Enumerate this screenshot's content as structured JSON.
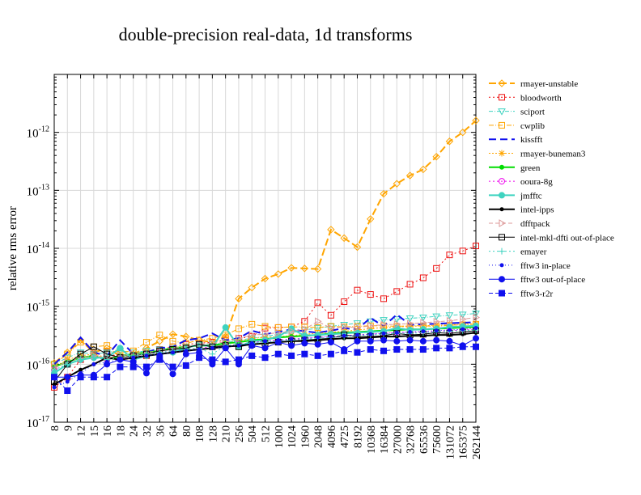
{
  "chart_data": {
    "type": "line",
    "title": "double-precision real-data, 1d transforms",
    "xlabel": "",
    "ylabel": "relative rms error",
    "yscale": "log",
    "ylim": [
      1e-17,
      1e-11
    ],
    "y_tick_labels": [
      "10",
      "10",
      "10",
      "10",
      "10",
      "10"
    ],
    "y_tick_exponents": [
      "-17",
      "-16",
      "-15",
      "-14",
      "-13",
      "-12"
    ],
    "grid": true,
    "legend_position": "right",
    "categories": [
      "8",
      "9",
      "12",
      "15",
      "16",
      "18",
      "24",
      "32",
      "36",
      "64",
      "80",
      "108",
      "128",
      "210",
      "256",
      "504",
      "512",
      "1000",
      "1024",
      "1960",
      "2048",
      "4096",
      "4725",
      "8192",
      "10368",
      "16384",
      "27000",
      "32768",
      "65536",
      "75600",
      "131072",
      "165375",
      "262144"
    ],
    "series": [
      {
        "name": "rmayer-unstable",
        "color": "#ffa500",
        "dash": "9,4",
        "width": 2,
        "marker": "diamond",
        "fill": "none",
        "values": [
          1.05e-16,
          1.6e-16,
          2.6e-16,
          1.6e-16,
          1.9e-16,
          1.4e-16,
          1.5e-16,
          1.9e-16,
          2.5e-16,
          3.3e-16,
          3e-16,
          2.6e-16,
          2.4e-16,
          3e-16,
          1.35e-15,
          2.1e-15,
          3e-15,
          3.6e-15,
          4.6e-15,
          4.5e-15,
          4.4e-15,
          2.1e-14,
          1.5e-14,
          1.05e-14,
          3.2e-14,
          8.7e-14,
          1.3e-13,
          1.8e-13,
          2.3e-13,
          3.8e-13,
          7e-13,
          1e-12,
          1.6e-12
        ]
      },
      {
        "name": "bloodworth",
        "color": "#ee1111",
        "dash": "2,3",
        "width": 1,
        "marker": "square",
        "fill": "none",
        "values": [
          4e-17,
          6e-17,
          1.2e-16,
          1.5e-16,
          1.6e-16,
          1.3e-16,
          1.3e-16,
          1.4e-16,
          1.8e-16,
          2e-16,
          2.2e-16,
          2.3e-16,
          2.4e-16,
          2.6e-16,
          2.8e-16,
          3e-16,
          4.2e-16,
          4.3e-16,
          4.4e-16,
          5.5e-16,
          1.15e-15,
          7e-16,
          1.2e-15,
          1.9e-15,
          1.6e-15,
          1.35e-15,
          1.8e-15,
          2.4e-15,
          3.1e-15,
          4.5e-15,
          7.7e-15,
          9e-15,
          1.1e-14
        ]
      },
      {
        "name": "sciport",
        "color": "#3fd3c0",
        "dash": "5,2,1,2",
        "width": 1,
        "marker": "triangle-down",
        "fill": "none",
        "values": [
          1e-16,
          1.3e-16,
          1.6e-16,
          1.5e-16,
          1.6e-16,
          1.7e-16,
          1.6e-16,
          1.7e-16,
          1.8e-16,
          1.9e-16,
          2e-16,
          2.1e-16,
          2.2e-16,
          2.4e-16,
          2.6e-16,
          2.8e-16,
          3e-16,
          3.3e-16,
          3.5e-16,
          3.9e-16,
          4.2e-16,
          4.5e-16,
          4.8e-16,
          5.1e-16,
          5.5e-16,
          5.8e-16,
          6e-16,
          6.2e-16,
          6.4e-16,
          6.7e-16,
          7e-16,
          7.2e-16,
          7.5e-16
        ]
      },
      {
        "name": "cwplib",
        "color": "#ffa500",
        "dash": "6,2,1,2",
        "width": 1,
        "marker": "square",
        "fill": "none",
        "values": [
          1e-16,
          1.5e-16,
          2.4e-16,
          2e-16,
          2.1e-16,
          1.6e-16,
          1.7e-16,
          2.4e-16,
          3.2e-16,
          2.5e-16,
          2.3e-16,
          2.6e-16,
          2.8e-16,
          3.2e-16,
          4.1e-16,
          4.9e-16,
          4.5e-16,
          4.3e-16,
          4.4e-16,
          4.4e-16,
          4.3e-16,
          4.5e-16,
          4.4e-16,
          4.5e-16,
          4.6e-16,
          4.6e-16,
          4.5e-16,
          4.6e-16,
          4.6e-16,
          4.5e-16,
          4.7e-16,
          4.8e-16,
          4.9e-16
        ]
      },
      {
        "name": "kissfft",
        "color": "#1010ee",
        "dash": "9,5",
        "width": 2,
        "marker": "none",
        "fill": "none",
        "values": [
          1e-16,
          1.6e-16,
          2.9e-16,
          1.6e-16,
          1.4e-16,
          2.6e-16,
          1.5e-16,
          1.6e-16,
          1.9e-16,
          2e-16,
          2.6e-16,
          2.8e-16,
          3.4e-16,
          2.6e-16,
          2.8e-16,
          3.8e-16,
          3.3e-16,
          3.6e-16,
          4e-16,
          3.7e-16,
          3.5e-16,
          3.8e-16,
          4.2e-16,
          4e-16,
          6.3e-16,
          4.5e-16,
          7.2e-16,
          4.8e-16,
          4.9e-16,
          5e-16,
          5.1e-16,
          5.2e-16,
          5.3e-16
        ]
      },
      {
        "name": "rmayer-buneman3",
        "color": "#ffa500",
        "dash": "2,2",
        "width": 1,
        "marker": "star",
        "fill": "none",
        "values": [
          9e-17,
          1.2e-16,
          1.4e-16,
          1.5e-16,
          1.3e-16,
          1.4e-16,
          1.5e-16,
          1.6e-16,
          1.7e-16,
          1.8e-16,
          2e-16,
          2.1e-16,
          2.1e-16,
          2.3e-16,
          2.5e-16,
          2.8e-16,
          2.9e-16,
          3e-16,
          3.1e-16,
          3.3e-16,
          3.4e-16,
          3.6e-16,
          3.7e-16,
          3.9e-16,
          4.1e-16,
          4.3e-16,
          4.4e-16,
          4.5e-16,
          4.6e-16,
          4.7e-16,
          4.8e-16,
          4.9e-16,
          5e-16
        ]
      },
      {
        "name": "green",
        "color": "#00dd00",
        "dash": "",
        "width": 2,
        "marker": "dot",
        "fill": "#00dd00",
        "values": [
          9e-17,
          1.1e-16,
          1.3e-16,
          1.4e-16,
          1.2e-16,
          1.4e-16,
          1.5e-16,
          1.6e-16,
          1.7e-16,
          1.9e-16,
          2e-16,
          2.1e-16,
          2.1e-16,
          2.3e-16,
          2.4e-16,
          2.6e-16,
          2.7e-16,
          2.9e-16,
          3e-16,
          3.1e-16,
          3.2e-16,
          3.4e-16,
          3.5e-16,
          3.6e-16,
          3.7e-16,
          3.8e-16,
          3.9e-16,
          4e-16,
          4e-16,
          4.1e-16,
          4.2e-16,
          4.3e-16,
          4.4e-16
        ]
      },
      {
        "name": "ooura-8g",
        "color": "#ee00ee",
        "dash": "2,3",
        "width": 1,
        "marker": "circle",
        "fill": "none",
        "values": [
          8e-17,
          1e-16,
          1.2e-16,
          1.3e-16,
          1.2e-16,
          1.3e-16,
          1.4e-16,
          1.5e-16,
          1.6e-16,
          1.7e-16,
          1.8e-16,
          1.9e-16,
          2e-16,
          2.1e-16,
          2.2e-16,
          2.4e-16,
          2.5e-16,
          2.6e-16,
          2.7e-16,
          2.8e-16,
          2.9e-16,
          3e-16,
          3.1e-16,
          3.2e-16,
          3.3e-16,
          3.4e-16,
          3.5e-16,
          3.6e-16,
          3.6e-16,
          3.7e-16,
          3.8e-16,
          3.9e-16,
          4e-16
        ]
      },
      {
        "name": "jmfftc",
        "color": "#3fd3c0",
        "dash": "",
        "width": 2,
        "marker": "dot-big",
        "fill": "#3fd3c0",
        "values": [
          7e-17,
          1e-16,
          1.2e-16,
          1.3e-16,
          1.3e-16,
          1.9e-16,
          1.2e-16,
          1.4e-16,
          1.5e-16,
          1.6e-16,
          1.9e-16,
          2.2e-16,
          2e-16,
          4.3e-16,
          2e-16,
          2.5e-16,
          2.6e-16,
          3e-16,
          4.1e-16,
          3.1e-16,
          3.2e-16,
          3.3e-16,
          3.4e-16,
          3.5e-16,
          3.6e-16,
          3.7e-16,
          4.2e-16,
          3.9e-16,
          4e-16,
          4.1e-16,
          4.4e-16,
          4.5e-16,
          4.6e-16
        ]
      },
      {
        "name": "intel-ipps",
        "color": "#000000",
        "dash": "",
        "width": 2,
        "marker": "dot-small",
        "fill": "#000000",
        "values": [
          4.5e-17,
          6e-17,
          8e-17,
          1e-16,
          1.3e-16,
          1.2e-16,
          1.3e-16,
          1.4e-16,
          1.5e-16,
          1.6e-16,
          1.7e-16,
          1.8e-16,
          1.9e-16,
          2e-16,
          2.1e-16,
          2.2e-16,
          2.3e-16,
          2.4e-16,
          2.5e-16,
          2.5e-16,
          2.6e-16,
          2.7e-16,
          2.8e-16,
          2.8e-16,
          2.9e-16,
          3e-16,
          3e-16,
          3.1e-16,
          3.1e-16,
          3.2e-16,
          3.2e-16,
          3.3e-16,
          3.5e-16
        ]
      },
      {
        "name": "dfftpack",
        "color": "#dd9999",
        "dash": "5,3",
        "width": 1,
        "marker": "triangle-right",
        "fill": "none",
        "values": [
          9e-17,
          1.1e-16,
          1.3e-16,
          1.4e-16,
          1.3e-16,
          1.4e-16,
          1.5e-16,
          1.6e-16,
          1.7e-16,
          1.9e-16,
          2e-16,
          2.2e-16,
          2.3e-16,
          2.4e-16,
          2.8e-16,
          3.2e-16,
          3.3e-16,
          3.5e-16,
          3.7e-16,
          4e-16,
          5.5e-16,
          4.2e-16,
          4.4e-16,
          4.3e-16,
          4.6e-16,
          4.8e-16,
          4.9e-16,
          5e-16,
          5.2e-16,
          5.4e-16,
          5.6e-16,
          6e-16,
          6.4e-16
        ]
      },
      {
        "name": "intel-mkl-dfti out-of-place",
        "color": "#000000",
        "dash": "",
        "width": 1,
        "marker": "square",
        "fill": "none",
        "values": [
          5e-17,
          1e-16,
          1.5e-16,
          2e-16,
          1.5e-16,
          1.3e-16,
          1.4e-16,
          1.5e-16,
          1.7e-16,
          1.8e-16,
          1.9e-16,
          2.2e-16,
          2e-16,
          2.1e-16,
          2e-16,
          2.2e-16,
          2.3e-16,
          2.4e-16,
          2.5e-16,
          2.6e-16,
          2.7e-16,
          2.8e-16,
          3.2e-16,
          3e-16,
          3e-16,
          3.1e-16,
          3.4e-16,
          3.2e-16,
          3.3e-16,
          3.5e-16,
          3.4e-16,
          3.6e-16,
          3.8e-16
        ]
      },
      {
        "name": "emayer",
        "color": "#3fd3c0",
        "dash": "2,3",
        "width": 1,
        "marker": "plus",
        "fill": "none",
        "values": [
          8e-17,
          1e-16,
          1.2e-16,
          1.3e-16,
          1.2e-16,
          1.3e-16,
          1.4e-16,
          1.5e-16,
          1.6e-16,
          1.7e-16,
          1.8e-16,
          1.9e-16,
          1.5e-16,
          2.1e-16,
          2.2e-16,
          2.3e-16,
          2.4e-16,
          2.5e-16,
          2.6e-16,
          2.7e-16,
          2.8e-16,
          2.9e-16,
          3e-16,
          3.1e-16,
          3.2e-16,
          3.3e-16,
          3.4e-16,
          3.4e-16,
          3.5e-16,
          3.6e-16,
          3.7e-16,
          3.8e-16,
          3.9e-16
        ]
      },
      {
        "name": "fftw3 in-place",
        "color": "#1010ee",
        "dash": "1,3",
        "width": 1,
        "marker": "dot-small",
        "fill": "#1010ee",
        "values": [
          4e-17,
          5e-17,
          7e-17,
          1e-16,
          1.1e-16,
          1.2e-16,
          1.3e-16,
          1.4e-16,
          1.5e-16,
          1.6e-16,
          1.7e-16,
          1.8e-16,
          1.9e-16,
          2e-16,
          2.1e-16,
          2.3e-16,
          2.5e-16,
          2.6e-16,
          2.7e-16,
          2.8e-16,
          2.9e-16,
          3e-16,
          3.1e-16,
          3.2e-16,
          3.3e-16,
          3.4e-16,
          3.5e-16,
          3.6e-16,
          3.7e-16,
          3.8e-16,
          3.9e-16,
          4e-16,
          4.2e-16
        ]
      },
      {
        "name": "fftw3 out-of-place",
        "color": "#1010ee",
        "dash": "",
        "width": 1,
        "marker": "dot-big",
        "fill": "#1010ee",
        "values": [
          6e-17,
          6e-17,
          6.5e-17,
          6.5e-17,
          1e-16,
          1.2e-16,
          1.1e-16,
          7e-17,
          1.4e-16,
          6.8e-17,
          1.5e-16,
          1.6e-16,
          1e-16,
          1.9e-16,
          1e-16,
          2.1e-16,
          1.9e-16,
          2.4e-16,
          2.1e-16,
          2.3e-16,
          2.2e-16,
          2.4e-16,
          1.8e-16,
          2.5e-16,
          2.5e-16,
          2.6e-16,
          2.5e-16,
          2.6e-16,
          2.5e-16,
          2.6e-16,
          2.5e-16,
          2.1e-16,
          2.8e-16
        ]
      },
      {
        "name": "fftw3-r2r",
        "color": "#1010ee",
        "dash": "5,3",
        "width": 1,
        "marker": "square-filled",
        "fill": "#1010ee",
        "values": [
          6e-17,
          3.5e-17,
          6e-17,
          6e-17,
          6e-17,
          9e-17,
          9e-17,
          9e-17,
          1.2e-16,
          9e-17,
          9.5e-17,
          1.3e-16,
          1.2e-16,
          1.1e-16,
          1.2e-16,
          1.4e-16,
          1.3e-16,
          1.5e-16,
          1.4e-16,
          1.5e-16,
          1.4e-16,
          1.5e-16,
          1.7e-16,
          1.6e-16,
          1.8e-16,
          1.7e-16,
          1.8e-16,
          1.8e-16,
          1.8e-16,
          1.9e-16,
          1.9e-16,
          2e-16,
          2e-16
        ]
      }
    ]
  }
}
